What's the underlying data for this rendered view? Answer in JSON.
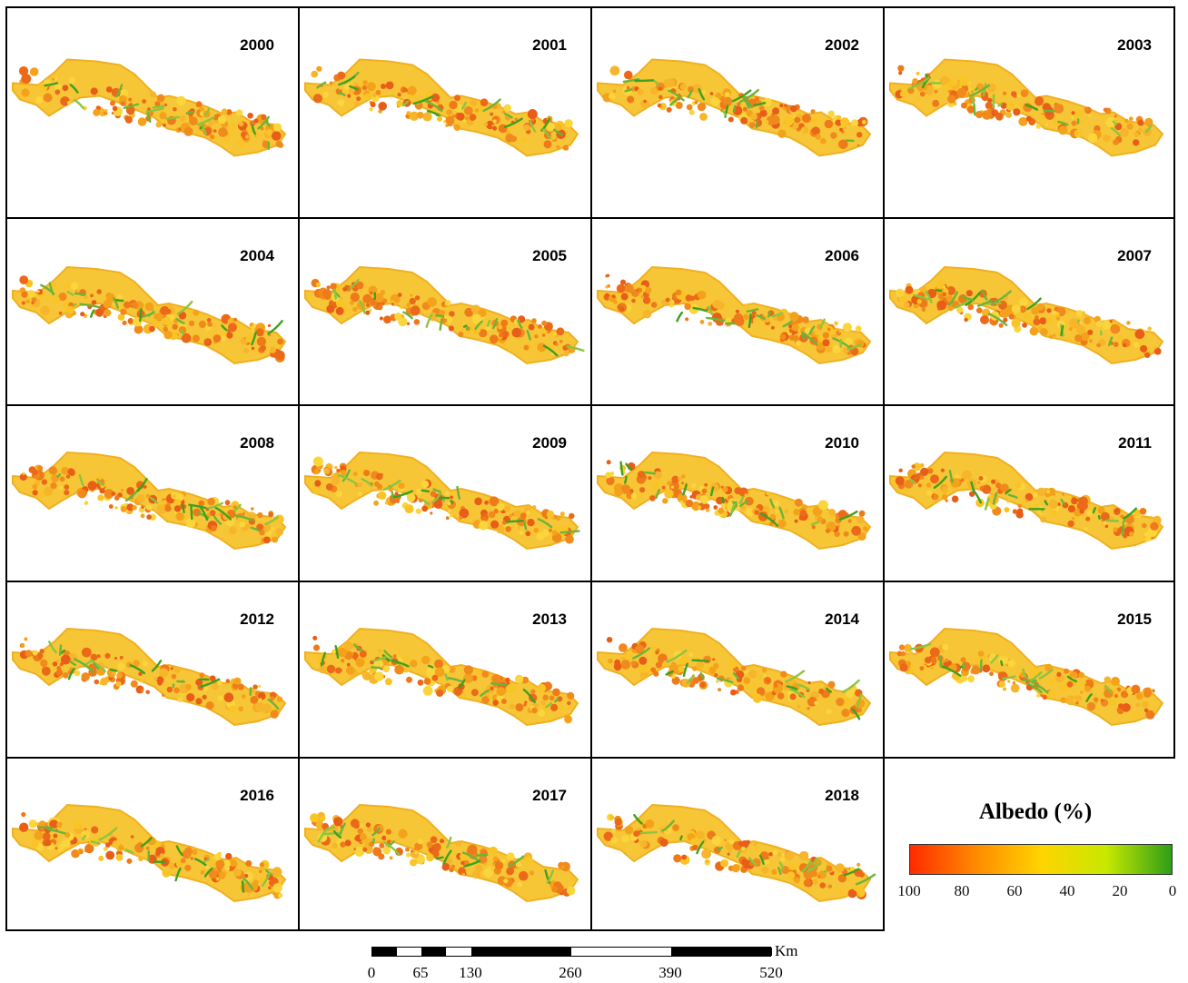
{
  "years": [
    "2000",
    "2001",
    "2002",
    "2003",
    "2004",
    "2005",
    "2006",
    "2007",
    "2008",
    "2009",
    "2010",
    "2011",
    "2012",
    "2013",
    "2014",
    "2015",
    "2016",
    "2017",
    "2018"
  ],
  "legend": {
    "title": "Albedo (%)",
    "ticks": [
      "100",
      "80",
      "60",
      "40",
      "20",
      "0"
    ],
    "colors": [
      "#ff2a00",
      "#ff8a00",
      "#ffd400",
      "#c8e800",
      "#2e9e17"
    ]
  },
  "scalebar": {
    "unit": "Km",
    "ticks": [
      "0",
      "65",
      "130",
      "260",
      "390",
      "520"
    ]
  }
}
